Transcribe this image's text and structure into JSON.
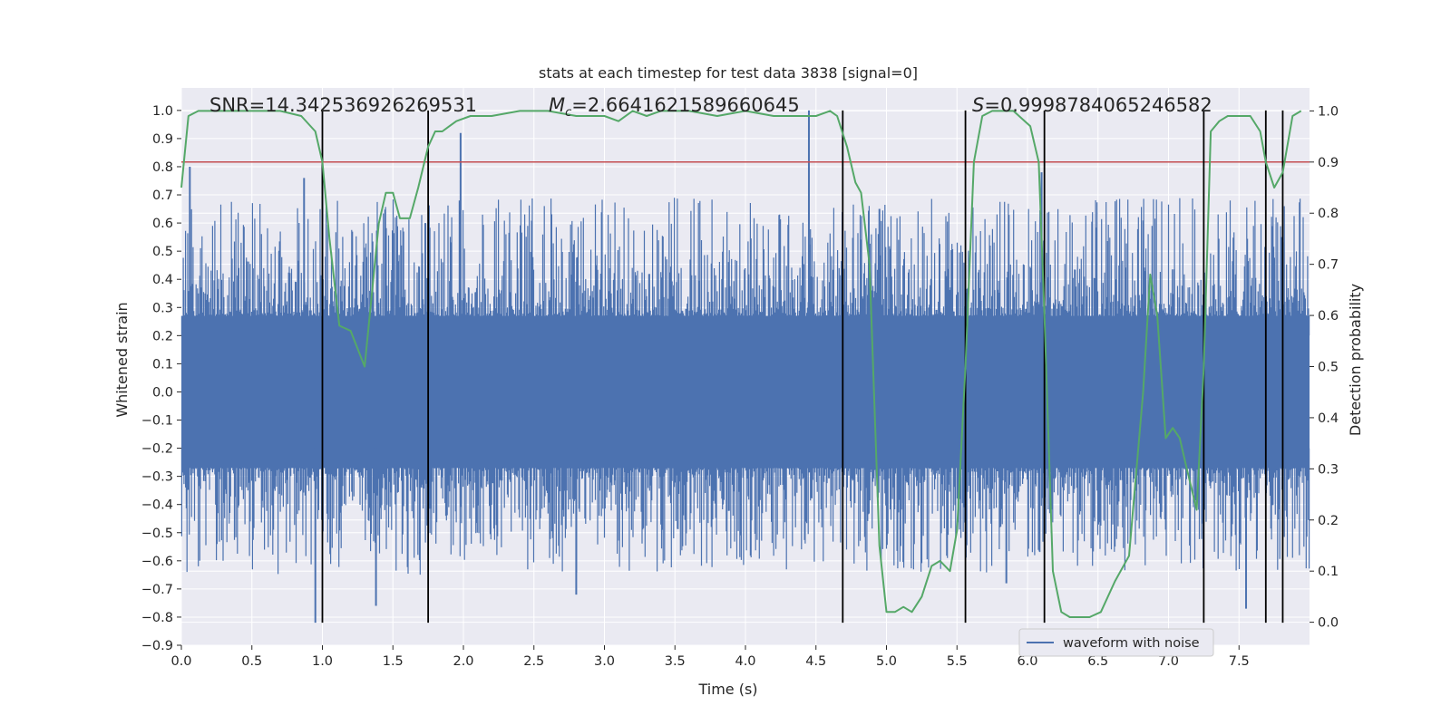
{
  "chart_data": {
    "type": "line",
    "title": "stats at each timestep for test data 3838 [signal=0]",
    "xlabel": "Time (s)",
    "ylabel": "Whitened strain",
    "y2label": "Detection probability",
    "xlim": [
      0,
      8
    ],
    "ylim": [
      -0.9,
      1.08
    ],
    "y2lim": [
      -0.045,
      1.045
    ],
    "xticks": [
      0.0,
      0.5,
      1.0,
      1.5,
      2.0,
      2.5,
      3.0,
      3.5,
      4.0,
      4.5,
      5.0,
      5.5,
      6.0,
      6.5,
      7.0,
      7.5
    ],
    "xtick_labels": [
      "0.0",
      "0.5",
      "1.0",
      "1.5",
      "2.0",
      "2.5",
      "3.0",
      "3.5",
      "4.0",
      "4.5",
      "5.0",
      "5.5",
      "6.0",
      "6.5",
      "7.0",
      "7.5"
    ],
    "yticks": [
      -0.9,
      -0.8,
      -0.7,
      -0.6,
      -0.5,
      -0.4,
      -0.3,
      -0.2,
      -0.1,
      0.0,
      0.1,
      0.2,
      0.3,
      0.4,
      0.5,
      0.6,
      0.7,
      0.8,
      0.9,
      1.0
    ],
    "ytick_labels": [
      "−0.9",
      "−0.8",
      "−0.7",
      "−0.6",
      "−0.5",
      "−0.4",
      "−0.3",
      "−0.2",
      "−0.1",
      "0.0",
      "0.1",
      "0.2",
      "0.3",
      "0.4",
      "0.5",
      "0.6",
      "0.7",
      "0.8",
      "0.9",
      "1.0"
    ],
    "y2ticks": [
      0.0,
      0.1,
      0.2,
      0.3,
      0.4,
      0.5,
      0.6,
      0.7,
      0.8,
      0.9,
      1.0
    ],
    "y2tick_labels": [
      "0.0",
      "0.1",
      "0.2",
      "0.3",
      "0.4",
      "0.5",
      "0.6",
      "0.7",
      "0.8",
      "0.9",
      "1.0"
    ],
    "annotations": {
      "snr": "SNR=14.342536926269531",
      "mc_symbol": "M",
      "mc_sub": "c",
      "mc_value": "=2.6641621589660645",
      "s_symbol": "S",
      "s_value": "=0.9998784065246582"
    },
    "threshold_probability": 0.9,
    "vertical_lines_x": [
      1.0,
      1.75,
      4.69,
      5.56,
      6.12,
      7.25,
      7.69,
      7.81
    ],
    "vertical_lines_y_range": [
      -0.82,
      1.0
    ],
    "waveform_envelope": {
      "name": "waveform with noise",
      "upper_peaks": [
        [
          0.06,
          0.8
        ],
        [
          0.87,
          0.76
        ],
        [
          1.0,
          0.82
        ],
        [
          1.73,
          0.6
        ],
        [
          1.98,
          0.92
        ],
        [
          4.45,
          1.0
        ],
        [
          4.95,
          0.65
        ],
        [
          6.1,
          0.78
        ],
        [
          7.8,
          0.55
        ]
      ],
      "lower_peaks": [
        [
          0.95,
          -0.82
        ],
        [
          1.38,
          -0.76
        ],
        [
          2.8,
          -0.72
        ],
        [
          5.85,
          -0.68
        ],
        [
          7.55,
          -0.77
        ]
      ]
    },
    "series": [
      {
        "name": "Detection probability",
        "color": "#55a868",
        "x": [
          0.0,
          0.05,
          0.12,
          0.3,
          0.5,
          0.7,
          0.85,
          0.95,
          1.0,
          1.05,
          1.12,
          1.2,
          1.3,
          1.4,
          1.45,
          1.5,
          1.55,
          1.62,
          1.68,
          1.75,
          1.8,
          1.85,
          1.9,
          1.95,
          2.05,
          2.2,
          2.4,
          2.6,
          2.8,
          3.0,
          3.1,
          3.2,
          3.3,
          3.4,
          3.6,
          3.8,
          4.0,
          4.2,
          4.4,
          4.5,
          4.6,
          4.65,
          4.72,
          4.78,
          4.82,
          4.88,
          4.95,
          5.0,
          5.06,
          5.12,
          5.18,
          5.25,
          5.32,
          5.38,
          5.45,
          5.5,
          5.56,
          5.62,
          5.68,
          5.75,
          5.82,
          5.9,
          6.02,
          6.08,
          6.12,
          6.18,
          6.24,
          6.3,
          6.36,
          6.44,
          6.52,
          6.62,
          6.72,
          6.82,
          6.87,
          6.92,
          6.98,
          7.03,
          7.08,
          7.13,
          7.2,
          7.25,
          7.3,
          7.36,
          7.42,
          7.5,
          7.58,
          7.65,
          7.69,
          7.75,
          7.81,
          7.88,
          7.94
        ],
        "y": [
          0.85,
          0.99,
          1.0,
          1.0,
          1.0,
          1.0,
          0.99,
          0.96,
          0.9,
          0.75,
          0.58,
          0.57,
          0.5,
          0.78,
          0.84,
          0.84,
          0.79,
          0.79,
          0.85,
          0.93,
          0.96,
          0.96,
          0.97,
          0.98,
          0.99,
          0.99,
          1.0,
          1.0,
          0.99,
          0.99,
          0.98,
          1.0,
          0.99,
          1.0,
          1.0,
          0.99,
          1.0,
          0.99,
          0.99,
          0.99,
          1.0,
          0.99,
          0.93,
          0.86,
          0.84,
          0.7,
          0.15,
          0.02,
          0.02,
          0.03,
          0.02,
          0.05,
          0.11,
          0.12,
          0.1,
          0.18,
          0.5,
          0.9,
          0.99,
          1.0,
          1.0,
          1.0,
          0.97,
          0.9,
          0.6,
          0.1,
          0.02,
          0.01,
          0.01,
          0.01,
          0.02,
          0.08,
          0.13,
          0.45,
          0.68,
          0.6,
          0.36,
          0.38,
          0.36,
          0.3,
          0.22,
          0.5,
          0.96,
          0.98,
          0.99,
          0.99,
          0.99,
          0.96,
          0.9,
          0.85,
          0.88,
          0.99,
          1.0
        ]
      }
    ],
    "colors": {
      "background": "#eaeaf2",
      "grid": "#ffffff",
      "waveform": "#4c72b0",
      "probability": "#55a868",
      "threshold": "#c44e52",
      "vlines": "#000000"
    },
    "legend": {
      "entries": [
        "waveform with noise"
      ],
      "placement": "lower-right"
    }
  }
}
